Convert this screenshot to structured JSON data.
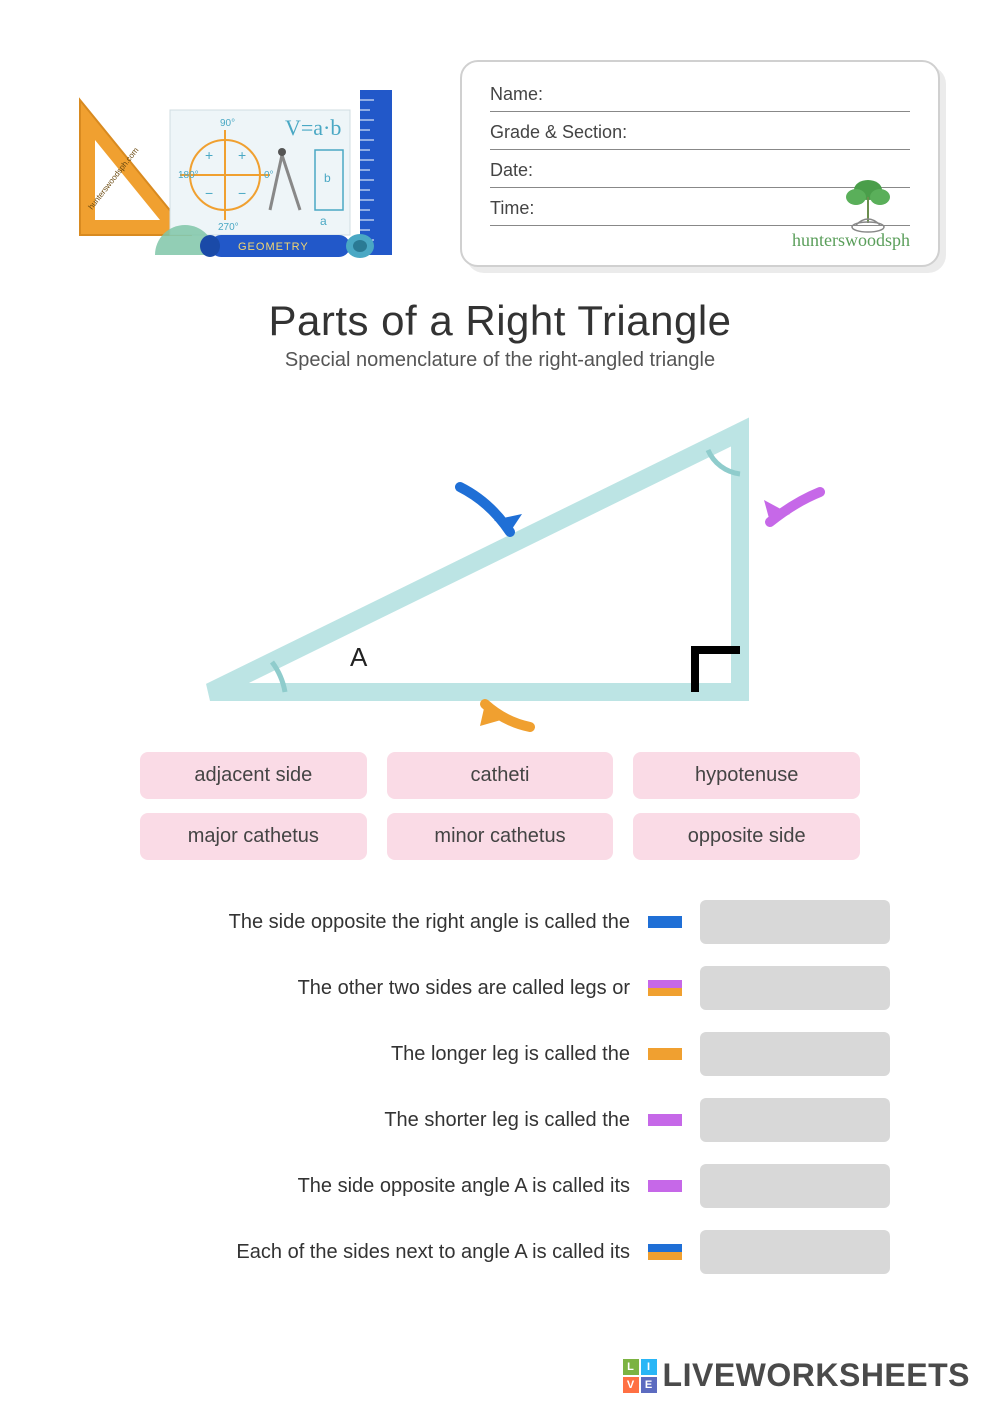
{
  "info_card": {
    "fields": [
      "Name:",
      "Grade & Section:",
      "Date:",
      "Time:"
    ],
    "signature": "hunterswoodsph"
  },
  "title": {
    "main": "Parts of a Right Triangle",
    "sub": "Special nomenclature of the right-angled triangle"
  },
  "diagram": {
    "triangle_color": "#bce4e4",
    "triangle_stroke_width": 18,
    "vertex_label": "A",
    "arrows": {
      "hypotenuse": "#1f6fd6",
      "vertical": "#c668e8",
      "base": "#f0a030"
    },
    "right_angle_color": "#000000"
  },
  "word_bank": {
    "bg": "#fadbe6",
    "items": [
      "adjacent side",
      "catheti",
      "hypotenuse",
      "major cathetus",
      "minor cathetus",
      "opposite side"
    ]
  },
  "colors": {
    "blue": "#1f6fd6",
    "purple": "#c668e8",
    "orange": "#f0a030",
    "answer_bg": "#d8d8d8"
  },
  "questions": [
    {
      "text": "The side opposite the right angle is called the",
      "swatch": [
        "#1f6fd6"
      ]
    },
    {
      "text": "The other two sides are called legs or",
      "swatch": [
        "#c668e8",
        "#f0a030"
      ]
    },
    {
      "text": "The longer leg is called the",
      "swatch": [
        "#f0a030"
      ]
    },
    {
      "text": "The shorter leg is called the",
      "swatch": [
        "#c668e8"
      ]
    },
    {
      "text": "The side opposite angle A is called its",
      "swatch": [
        "#c668e8"
      ]
    },
    {
      "text": "Each of the sides next to angle A is called its",
      "swatch": [
        "#1f6fd6",
        "#f0a030"
      ]
    }
  ],
  "footer": {
    "brand": "LIVEWORKSHEETS",
    "badge": [
      {
        "c": "#7cb342",
        "t": "L"
      },
      {
        "c": "#29b6f6",
        "t": "I"
      },
      {
        "c": "#ff7043",
        "t": "V"
      },
      {
        "c": "#5c6bc0",
        "t": "E"
      }
    ]
  },
  "clipart": {
    "ruler_color": "#2258c9",
    "set_square_color": "#f0a030",
    "protractor_color": "#7fc5a8",
    "chalkboard_bg": "#eef5f8",
    "chalk_orange": "#f0a030",
    "chalk_teal": "#4aa8c4",
    "geometry_label": "GEOMETRY",
    "side_label": "hunterswoodsph.com"
  }
}
